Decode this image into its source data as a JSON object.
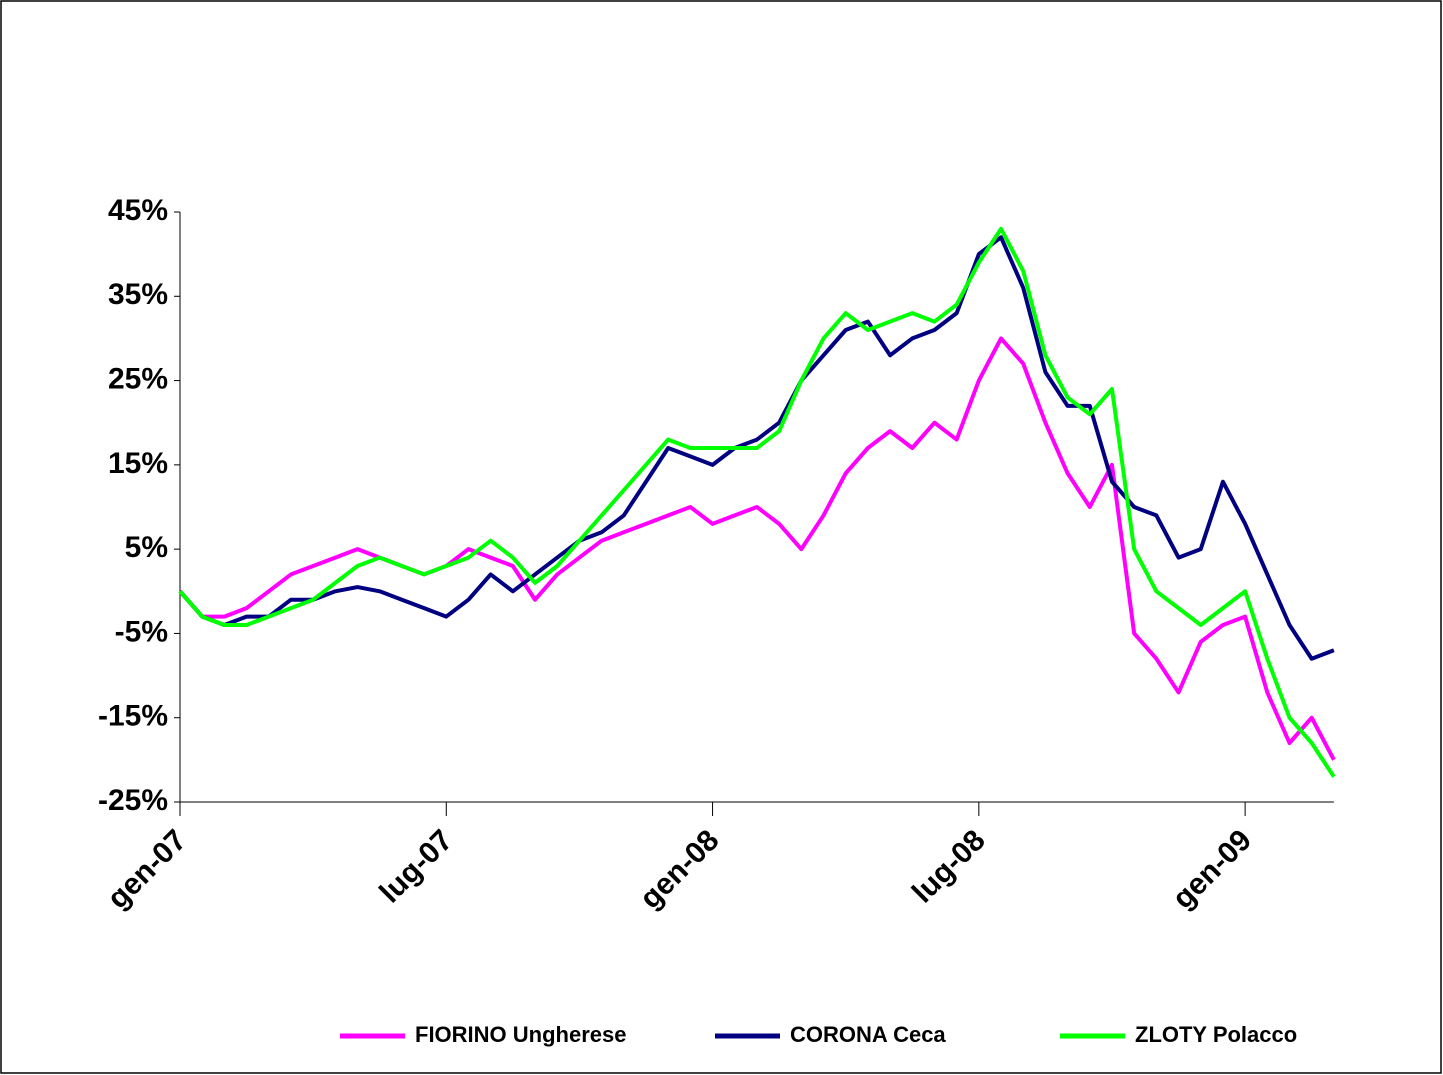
{
  "chart_data": {
    "type": "line",
    "categories": [
      "gen-07",
      null,
      null,
      null,
      null,
      null,
      null,
      null,
      null,
      null,
      null,
      null,
      "lug-07",
      null,
      null,
      null,
      null,
      null,
      null,
      null,
      null,
      null,
      null,
      null,
      "gen-08",
      null,
      null,
      null,
      null,
      null,
      null,
      null,
      null,
      null,
      null,
      null,
      "lug-08",
      null,
      null,
      null,
      null,
      null,
      null,
      null,
      null,
      null,
      null,
      null,
      "gen-09",
      null,
      null,
      null,
      null
    ],
    "series": [
      {
        "name": "FIORINO Ungherese",
        "color": "#ff00ff",
        "values": [
          0,
          -3,
          -3,
          -2,
          0,
          2,
          3,
          4,
          5,
          4,
          3,
          2,
          3,
          5,
          4,
          3,
          -1,
          2,
          4,
          6,
          7,
          8,
          9,
          10,
          8,
          9,
          10,
          8,
          5,
          9,
          14,
          17,
          19,
          17,
          20,
          18,
          25,
          30,
          27,
          20,
          14,
          10,
          15,
          -5,
          -8,
          -12,
          -6,
          -4,
          -3,
          -12,
          -18,
          -15,
          -20
        ]
      },
      {
        "name": "CORONA Ceca",
        "color": "#000080",
        "values": [
          0,
          -3,
          -4,
          -3,
          -3,
          -1,
          -1,
          0,
          0.5,
          0,
          -1,
          -2,
          -3,
          -1,
          2,
          0,
          2,
          4,
          6,
          7,
          9,
          13,
          17,
          16,
          15,
          17,
          18,
          20,
          25,
          28,
          31,
          32,
          28,
          30,
          31,
          33,
          40,
          42,
          36,
          26,
          22,
          22,
          13,
          10,
          9,
          4,
          5,
          13,
          8,
          2,
          -4,
          -8,
          -7
        ]
      },
      {
        "name": "ZLOTY Polacco",
        "color": "#00ff00",
        "values": [
          0,
          -3,
          -4,
          -4,
          -3,
          -2,
          -1,
          1,
          3,
          4,
          3,
          2,
          3,
          4,
          6,
          4,
          1,
          3,
          6,
          9,
          12,
          15,
          18,
          17,
          17,
          17,
          17,
          19,
          25,
          30,
          33,
          31,
          32,
          33,
          32,
          34,
          39,
          43,
          38,
          28,
          23,
          21,
          24,
          5,
          0,
          -2,
          -4,
          -2,
          0,
          -8,
          -15,
          -18,
          -22
        ]
      }
    ],
    "ylim": [
      -25,
      45
    ],
    "yticks": [
      {
        "value": -25,
        "label": "-25%"
      },
      {
        "value": -15,
        "label": "-15%"
      },
      {
        "value": -5,
        "label": "-5%"
      },
      {
        "value": 5,
        "label": "5%"
      },
      {
        "value": 15,
        "label": "15%"
      },
      {
        "value": 25,
        "label": "25%"
      },
      {
        "value": 35,
        "label": "35%"
      },
      {
        "value": 45,
        "label": "45%"
      }
    ],
    "legend": "bottom"
  }
}
